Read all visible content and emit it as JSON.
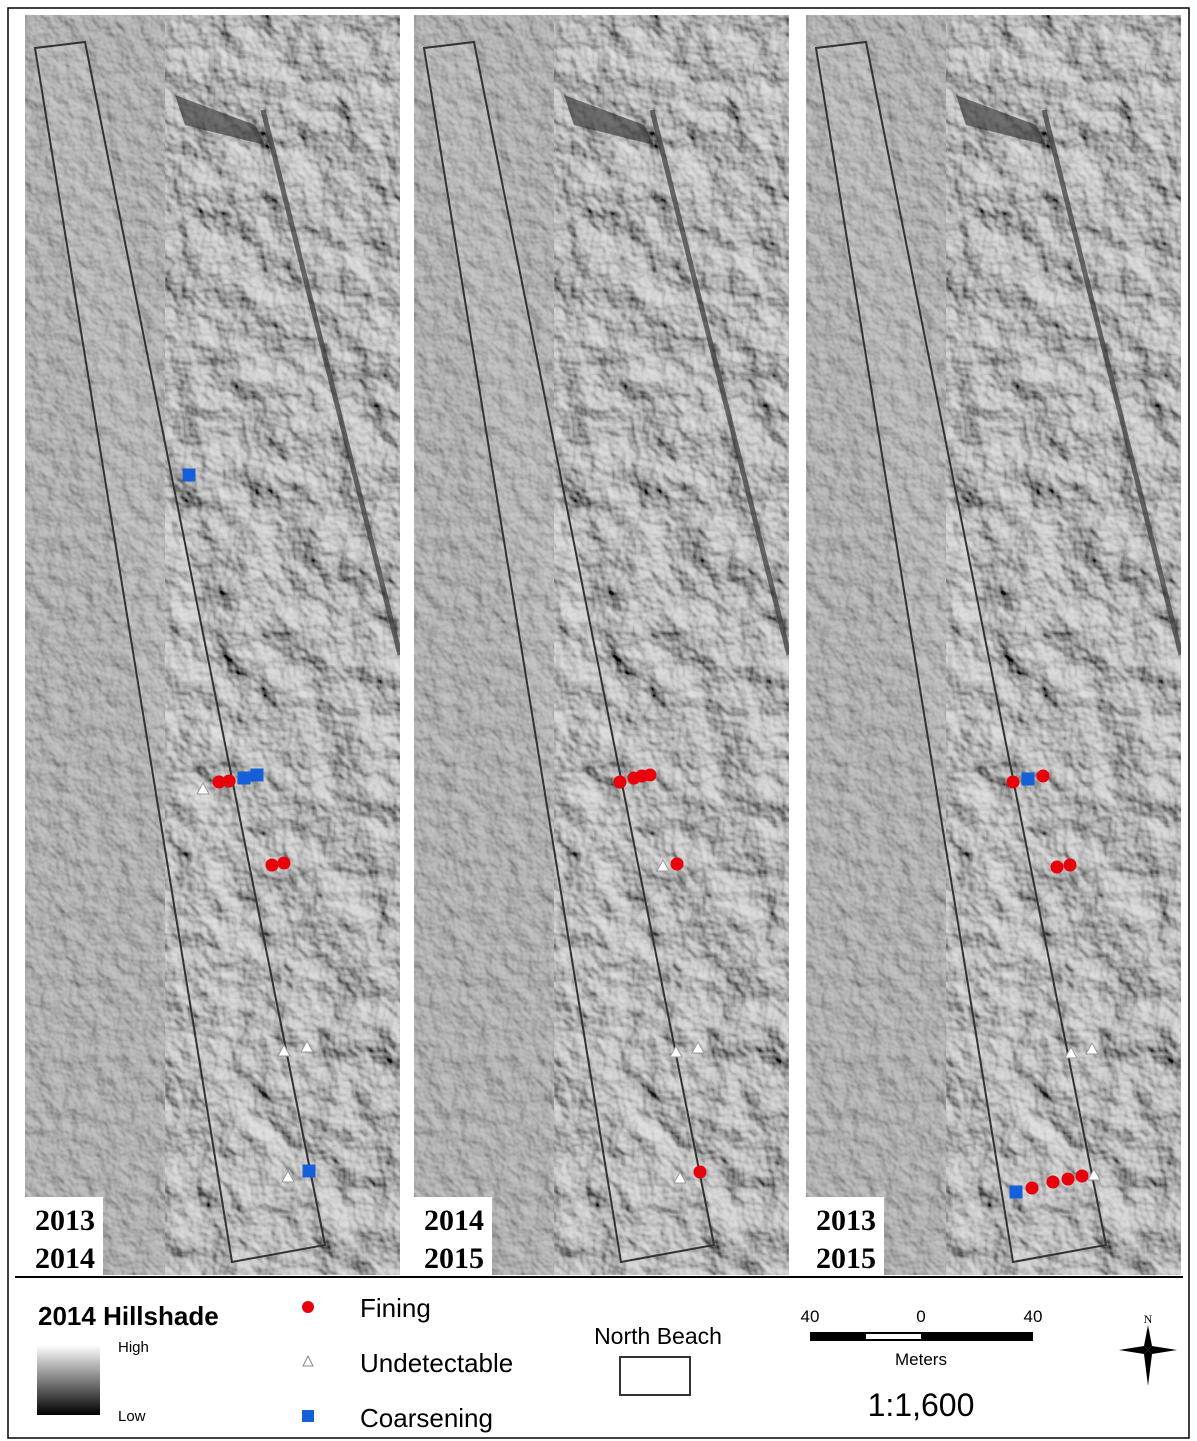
{
  "panels": [
    {
      "label": [
        "2013",
        "2014"
      ]
    },
    {
      "label": [
        "2014",
        "2015"
      ]
    },
    {
      "label": [
        "2013",
        "2015"
      ]
    }
  ],
  "legend": {
    "title": "2014 Hillshade",
    "high": "High",
    "low": "Low",
    "items": [
      {
        "label": "Fining"
      },
      {
        "label": "Undetectable"
      },
      {
        "label": "Coarsening"
      }
    ]
  },
  "boundary": {
    "label": "North Beach"
  },
  "scale_bar": {
    "ticks": [
      "40",
      "0",
      "40"
    ],
    "unit": "Meters",
    "ratio": "1:1,600"
  },
  "north": "N"
}
